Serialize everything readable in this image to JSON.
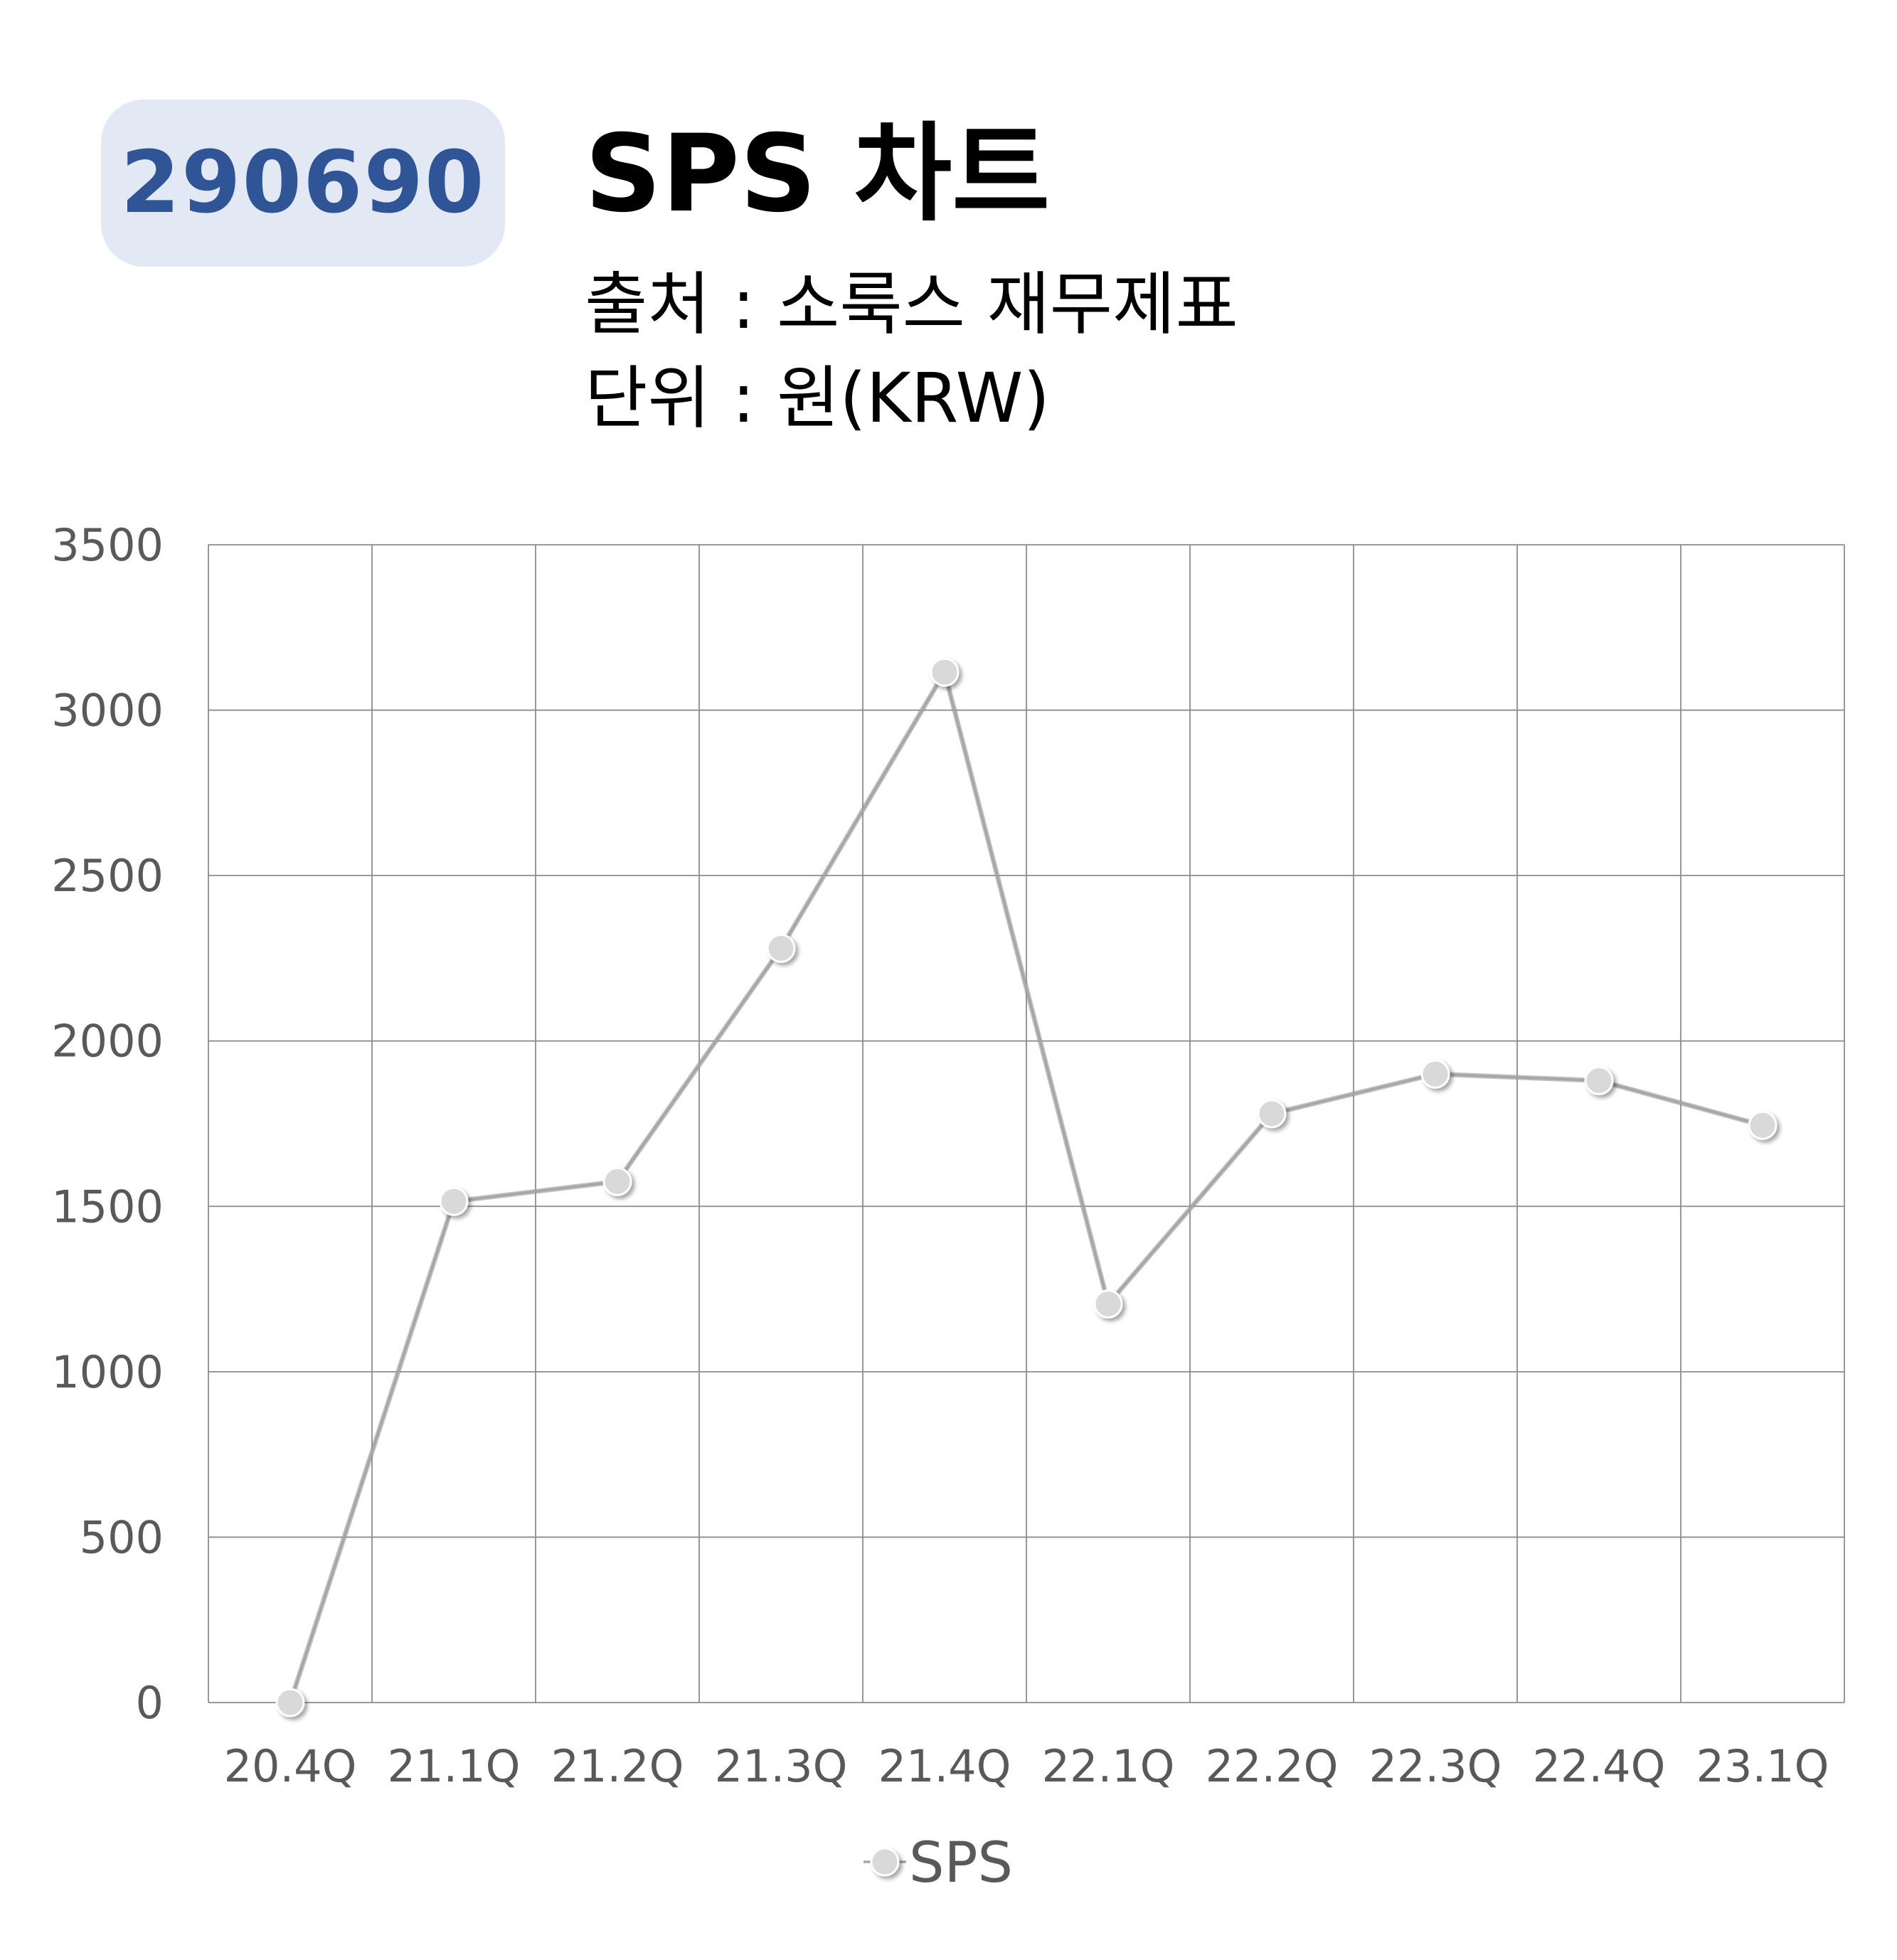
{
  "header": {
    "ticker": "290690",
    "title": "SPS 차트",
    "source": "출처 : 소룩스 재무제표",
    "unit": "단위 : 원(KRW)"
  },
  "colors": {
    "badge_bg": "#e3e9f4",
    "badge_text": "#2f5596",
    "series_line": "#a6a6a6",
    "marker_fill": "#d9d9d9",
    "grid": "#8c8c8c"
  },
  "chart_data": {
    "type": "line",
    "categories": [
      "20.4Q",
      "21.1Q",
      "21.2Q",
      "21.3Q",
      "21.4Q",
      "22.1Q",
      "22.2Q",
      "22.3Q",
      "22.4Q",
      "23.1Q"
    ],
    "series": [
      {
        "name": "SPS",
        "values": [
          0,
          1515,
          1575,
          2280,
          3115,
          1205,
          1780,
          1900,
          1880,
          1745
        ]
      }
    ],
    "ylim": [
      0,
      3500
    ],
    "yticks": [
      "3500",
      "3000",
      "2500",
      "2000",
      "1500",
      "1000",
      "500",
      "0"
    ],
    "grid": true,
    "legend": "bottom"
  }
}
